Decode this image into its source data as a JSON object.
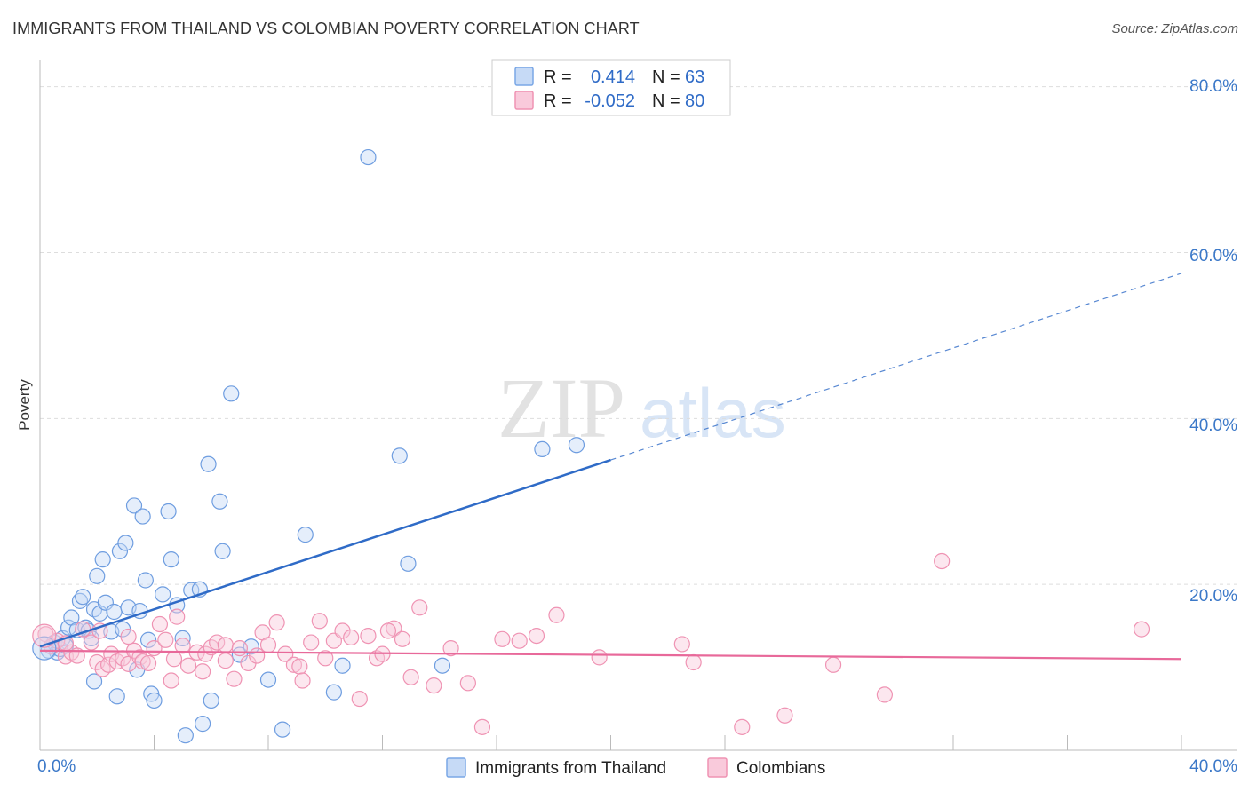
{
  "header": {
    "title": "IMMIGRANTS FROM THAILAND VS COLOMBIAN POVERTY CORRELATION CHART",
    "source": "Source: ZipAtlas.com"
  },
  "chart_data": {
    "type": "scatter",
    "ylabel": "Poverty",
    "x_ticks": [
      "0.0%",
      "40.0%"
    ],
    "y_ticks": [
      "20.0%",
      "40.0%",
      "60.0%",
      "80.0%"
    ],
    "xlim": [
      0,
      40
    ],
    "ylim": [
      0,
      82
    ],
    "watermark": {
      "zip": "ZIP",
      "atlas": "atlas"
    },
    "legend": [
      {
        "name": "Immigrants from Thailand",
        "r_label": "R =",
        "r": "0.414",
        "n_label": "N =",
        "n": "63",
        "color": "#7aa7e6",
        "fill": "#c6daf6"
      },
      {
        "name": "Colombians",
        "r_label": "R =",
        "r": "-0.052",
        "n_label": "N =",
        "n": "80",
        "color": "#ef93b3",
        "fill": "#f9cadb"
      }
    ],
    "series": [
      {
        "name": "Immigrants from Thailand",
        "color": "#6e9de0",
        "trend": {
          "x0": 0,
          "y0": 12.5,
          "x1": 20,
          "y1": 35,
          "x_dash_end": 40,
          "y_dash_end": 57.5,
          "color": "#2f6bc7"
        },
        "points": [
          [
            0.3,
            12
          ],
          [
            0.4,
            12.5
          ],
          [
            0.5,
            13
          ],
          [
            0.6,
            11.8
          ],
          [
            0.7,
            12.2
          ],
          [
            0.8,
            13.5
          ],
          [
            0.9,
            12.6
          ],
          [
            1.0,
            14.8
          ],
          [
            1.1,
            16
          ],
          [
            1.3,
            14.5
          ],
          [
            1.4,
            18
          ],
          [
            1.5,
            18.5
          ],
          [
            1.6,
            14.8
          ],
          [
            1.7,
            14.4
          ],
          [
            1.8,
            13.5
          ],
          [
            1.9,
            17
          ],
          [
            2.0,
            21
          ],
          [
            2.1,
            16.5
          ],
          [
            2.2,
            23
          ],
          [
            2.3,
            17.8
          ],
          [
            2.5,
            14.3
          ],
          [
            2.6,
            16.7
          ],
          [
            2.7,
            6.5
          ],
          [
            2.8,
            24
          ],
          [
            2.9,
            14.6
          ],
          [
            3.0,
            25
          ],
          [
            3.1,
            17.2
          ],
          [
            3.3,
            29.5
          ],
          [
            3.4,
            9.7
          ],
          [
            3.5,
            16.8
          ],
          [
            3.6,
            28.2
          ],
          [
            3.7,
            20.5
          ],
          [
            3.8,
            13.3
          ],
          [
            3.9,
            6.8
          ],
          [
            4.0,
            6.0
          ],
          [
            4.3,
            18.8
          ],
          [
            4.5,
            28.8
          ],
          [
            4.6,
            23
          ],
          [
            4.8,
            17.5
          ],
          [
            5.0,
            13.5
          ],
          [
            5.3,
            19.3
          ],
          [
            5.6,
            19.4
          ],
          [
            5.9,
            34.5
          ],
          [
            6.0,
            6.0
          ],
          [
            6.3,
            30
          ],
          [
            6.4,
            24
          ],
          [
            6.7,
            43
          ],
          [
            7.0,
            11.5
          ],
          [
            7.4,
            12.5
          ],
          [
            8.0,
            8.5
          ],
          [
            8.5,
            2.5
          ],
          [
            9.3,
            26
          ],
          [
            10.3,
            7
          ],
          [
            10.6,
            10.2
          ],
          [
            11.5,
            71.5
          ],
          [
            12.6,
            35.5
          ],
          [
            12.9,
            22.5
          ],
          [
            14.1,
            10.2
          ],
          [
            17.6,
            36.3
          ],
          [
            18.8,
            36.8
          ],
          [
            5.1,
            1.8
          ],
          [
            5.7,
            3.2
          ],
          [
            1.9,
            8.3
          ]
        ]
      },
      {
        "name": "Colombians",
        "color": "#ef93b3",
        "trend": {
          "x0": 0,
          "y0": 12.0,
          "x1": 40,
          "y1": 11.0,
          "color": "#e8699a"
        },
        "points": [
          [
            0.2,
            14
          ],
          [
            0.4,
            12.5
          ],
          [
            0.6,
            13.2
          ],
          [
            0.9,
            11.3
          ],
          [
            1.1,
            11.8
          ],
          [
            1.3,
            11.4
          ],
          [
            1.5,
            14.6
          ],
          [
            1.8,
            13
          ],
          [
            2.0,
            10.6
          ],
          [
            2.2,
            9.8
          ],
          [
            2.4,
            10.3
          ],
          [
            2.5,
            11.6
          ],
          [
            2.7,
            10.7
          ],
          [
            2.9,
            11.1
          ],
          [
            3.1,
            10.4
          ],
          [
            3.3,
            12
          ],
          [
            3.5,
            11.2
          ],
          [
            3.6,
            10.7
          ],
          [
            3.8,
            10.5
          ],
          [
            4.0,
            12.3
          ],
          [
            4.2,
            15.2
          ],
          [
            4.4,
            13.3
          ],
          [
            4.7,
            11
          ],
          [
            4.8,
            16.1
          ],
          [
            5.0,
            12.6
          ],
          [
            5.2,
            10.2
          ],
          [
            5.5,
            11.8
          ],
          [
            5.8,
            11.6
          ],
          [
            6.0,
            12.4
          ],
          [
            6.2,
            13
          ],
          [
            6.5,
            12.7
          ],
          [
            6.8,
            8.6
          ],
          [
            7.0,
            12.3
          ],
          [
            7.3,
            10.5
          ],
          [
            7.6,
            11.4
          ],
          [
            7.8,
            14.2
          ],
          [
            8.0,
            12.7
          ],
          [
            8.3,
            15.4
          ],
          [
            8.6,
            11.6
          ],
          [
            8.9,
            10.3
          ],
          [
            9.1,
            10.1
          ],
          [
            9.5,
            13
          ],
          [
            9.8,
            15.6
          ],
          [
            10.0,
            11.1
          ],
          [
            10.3,
            13.2
          ],
          [
            10.6,
            14.4
          ],
          [
            10.9,
            13.6
          ],
          [
            11.2,
            6.2
          ],
          [
            11.5,
            13.8
          ],
          [
            11.8,
            11.1
          ],
          [
            12.0,
            11.6
          ],
          [
            12.4,
            14.7
          ],
          [
            12.7,
            13.4
          ],
          [
            13.0,
            8.8
          ],
          [
            13.3,
            17.2
          ],
          [
            13.8,
            7.8
          ],
          [
            14.4,
            12.3
          ],
          [
            15.0,
            8.1
          ],
          [
            15.5,
            2.8
          ],
          [
            16.2,
            13.4
          ],
          [
            16.8,
            13.2
          ],
          [
            17.4,
            13.8
          ],
          [
            18.1,
            16.3
          ],
          [
            19.6,
            11.2
          ],
          [
            22.5,
            12.8
          ],
          [
            22.9,
            10.6
          ],
          [
            24.6,
            2.8
          ],
          [
            26.1,
            4.2
          ],
          [
            27.8,
            10.3
          ],
          [
            29.6,
            6.7
          ],
          [
            31.6,
            22.8
          ],
          [
            38.6,
            14.6
          ],
          [
            0.9,
            12.9
          ],
          [
            2.1,
            14.4
          ],
          [
            3.1,
            13.7
          ],
          [
            4.6,
            8.4
          ],
          [
            5.7,
            9.5
          ],
          [
            6.5,
            10.8
          ],
          [
            9.2,
            8.4
          ],
          [
            12.2,
            14.4
          ]
        ]
      }
    ]
  }
}
